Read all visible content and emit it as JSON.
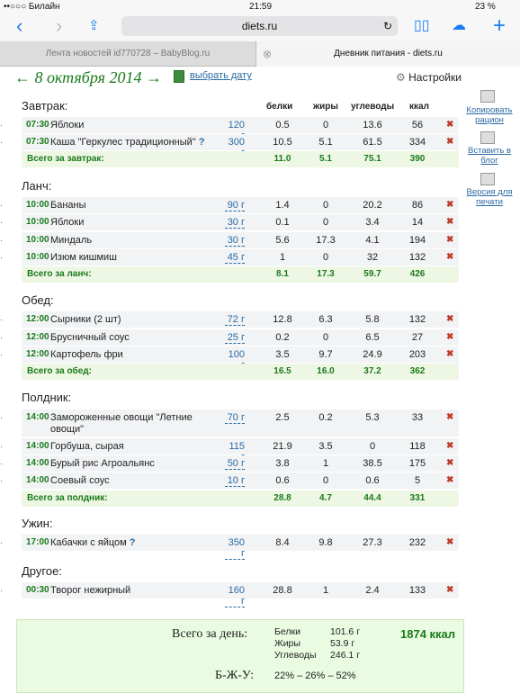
{
  "status": {
    "carrier": "••○○○ Билайн",
    "time": "21:59",
    "battery": "23 %"
  },
  "browser": {
    "url": "diets.ru",
    "tabs": [
      "Лента новостей id770728 – BabyBlog.ru",
      "Дневник питания - diets.ru"
    ]
  },
  "date_nav": {
    "prev": "←",
    "date": "8 октября 2014",
    "next": "→",
    "pick_label": "выбрать дату",
    "settings_label": "Настройки"
  },
  "columns": [
    "белки",
    "жиры",
    "углеводы",
    "ккал"
  ],
  "meals": [
    {
      "name": "Завтрак:",
      "items": [
        {
          "time": "07:30",
          "food": "Яблоки",
          "grams": "120 г",
          "p": "0.5",
          "f": "0",
          "c": "13.6",
          "kcal": "56",
          "q": ""
        },
        {
          "time": "07:30",
          "food": "Каша \"Геркулес традиционный\"",
          "grams": "300 г",
          "p": "10.5",
          "f": "5.1",
          "c": "61.5",
          "kcal": "334",
          "q": "?"
        }
      ],
      "total": {
        "label": "Всего за завтрак:",
        "p": "11.0",
        "f": "5.1",
        "c": "75.1",
        "kcal": "390"
      }
    },
    {
      "name": "Ланч:",
      "items": [
        {
          "time": "10:00",
          "food": "Бананы",
          "grams": "90 г",
          "p": "1.4",
          "f": "0",
          "c": "20.2",
          "kcal": "86",
          "q": ""
        },
        {
          "time": "10:00",
          "food": "Яблоки",
          "grams": "30 г",
          "p": "0.1",
          "f": "0",
          "c": "3.4",
          "kcal": "14",
          "q": ""
        },
        {
          "time": "10:00",
          "food": "Миндаль",
          "grams": "30 г",
          "p": "5.6",
          "f": "17.3",
          "c": "4.1",
          "kcal": "194",
          "q": ""
        },
        {
          "time": "10:00",
          "food": "Изюм кишмиш",
          "grams": "45 г",
          "p": "1",
          "f": "0",
          "c": "32",
          "kcal": "132",
          "q": ""
        }
      ],
      "total": {
        "label": "Всего за ланч:",
        "p": "8.1",
        "f": "17.3",
        "c": "59.7",
        "kcal": "426"
      }
    },
    {
      "name": "Обед:",
      "items": [
        {
          "time": "12:00",
          "food": "Сырники (2 шт)",
          "grams": "72 г",
          "p": "12.8",
          "f": "6.3",
          "c": "5.8",
          "kcal": "132",
          "q": ""
        },
        {
          "time": "12:00",
          "food": "Брусничный соус",
          "grams": "25 г",
          "p": "0.2",
          "f": "0",
          "c": "6.5",
          "kcal": "27",
          "q": ""
        },
        {
          "time": "12:00",
          "food": "Картофель фри",
          "grams": "100 г",
          "p": "3.5",
          "f": "9.7",
          "c": "24.9",
          "kcal": "203",
          "q": ""
        }
      ],
      "total": {
        "label": "Всего за обед:",
        "p": "16.5",
        "f": "16.0",
        "c": "37.2",
        "kcal": "362"
      }
    },
    {
      "name": "Полдник:",
      "items": [
        {
          "time": "14:00",
          "food": "Замороженные овощи \"Летние овощи\"",
          "grams": "70 г",
          "p": "2.5",
          "f": "0.2",
          "c": "5.3",
          "kcal": "33",
          "q": ""
        },
        {
          "time": "14:00",
          "food": "Горбуша, сырая",
          "grams": "115 г",
          "p": "21.9",
          "f": "3.5",
          "c": "0",
          "kcal": "118",
          "q": ""
        },
        {
          "time": "14:00",
          "food": "Бурый рис Агроальянс",
          "grams": "50 г",
          "p": "3.8",
          "f": "1",
          "c": "38.5",
          "kcal": "175",
          "q": ""
        },
        {
          "time": "14:00",
          "food": "Соевый соус",
          "grams": "10 г",
          "p": "0.6",
          "f": "0",
          "c": "0.6",
          "kcal": "5",
          "q": ""
        }
      ],
      "total": {
        "label": "Всего за полдник:",
        "p": "28.8",
        "f": "4.7",
        "c": "44.4",
        "kcal": "331"
      }
    },
    {
      "name": "Ужин:",
      "items": [
        {
          "time": "17:00",
          "food": "Кабачки с яйцом",
          "grams": "350 г",
          "p": "8.4",
          "f": "9.8",
          "c": "27.3",
          "kcal": "232",
          "q": "?"
        }
      ],
      "total": null
    },
    {
      "name": "Другое:",
      "items": [
        {
          "time": "00:30",
          "food": "Творог нежирный",
          "grams": "160 г",
          "p": "28.8",
          "f": "1",
          "c": "2.4",
          "kcal": "133",
          "q": ""
        }
      ],
      "total": null
    }
  ],
  "sidebar": [
    "Копировать рацион",
    "Вставить в блог",
    "Версия для печати"
  ],
  "day_summary": {
    "label": "Всего за день:",
    "protein_label": "Белки",
    "protein": "101.6 г",
    "fat_label": "Жиры",
    "fat": "53.9 г",
    "carb_label": "Углеводы",
    "carb": "246.1 г",
    "kcal": "1874 ккал",
    "bju_label": "Б-Ж-У:",
    "bju": "22% – 26% – 52%"
  },
  "colors": {
    "accent": "#1a7a1a",
    "link": "#2b6aa3",
    "delete": "#c0392b",
    "total_bg": "#eef7e4",
    "summary_bg": "#e9fbe1"
  }
}
